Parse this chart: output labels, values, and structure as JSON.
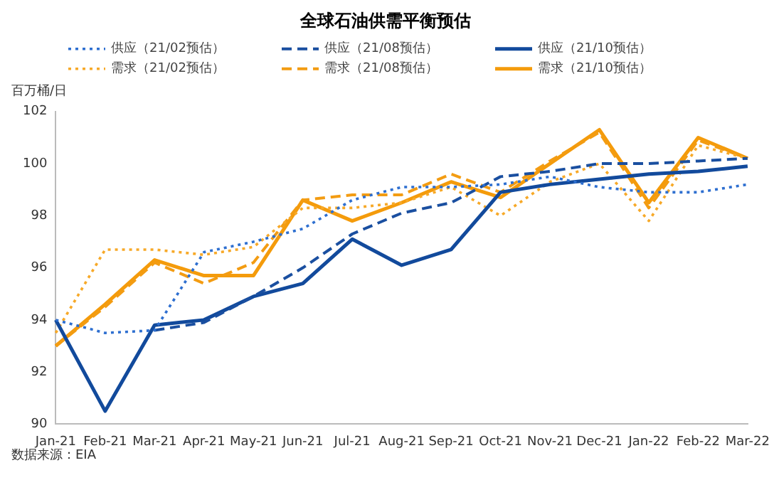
{
  "chart_data": {
    "type": "line",
    "title": "全球石油供需平衡预估",
    "ylabel": "百万桶/日",
    "categories": [
      "Jan-21",
      "Feb-21",
      "Mar-21",
      "Apr-21",
      "May-21",
      "Jun-21",
      "Jul-21",
      "Aug-21",
      "Sep-21",
      "Oct-21",
      "Nov-21",
      "Dec-21",
      "Jan-22",
      "Feb-22",
      "Mar-22"
    ],
    "series": [
      {
        "name": "供应（21/02预估）",
        "color": "#2e6fd0",
        "line_style": "dotted",
        "values": [
          94.0,
          93.5,
          93.6,
          96.6,
          97.0,
          97.5,
          98.6,
          99.1,
          99.1,
          99.2,
          99.5,
          99.1,
          98.9,
          98.9,
          99.2
        ]
      },
      {
        "name": "供应（21/08预估）",
        "color": "#1a4fa0",
        "line_style": "dashed",
        "values": [
          null,
          null,
          93.6,
          93.9,
          94.9,
          96.0,
          97.3,
          98.1,
          98.5,
          99.5,
          99.7,
          100.0,
          100.0,
          100.1,
          100.2
        ]
      },
      {
        "name": "供应（21/10预估）",
        "color": "#124a9c",
        "line_style": "solid",
        "values": [
          94.0,
          90.5,
          93.8,
          94.0,
          94.9,
          95.4,
          97.1,
          96.1,
          96.7,
          98.9,
          99.2,
          99.4,
          99.6,
          99.7,
          99.9
        ]
      },
      {
        "name": "需求（21/02预估）",
        "color": "#f7a928",
        "line_style": "dotted",
        "values": [
          93.5,
          96.7,
          96.7,
          96.5,
          96.8,
          98.3,
          98.3,
          98.5,
          99.1,
          98.0,
          99.3,
          100.0,
          97.8,
          100.7,
          100.2
        ]
      },
      {
        "name": "需求（21/08预估）",
        "color": "#f39c12",
        "line_style": "dashed",
        "values": [
          93.0,
          94.5,
          96.2,
          95.4,
          96.2,
          98.6,
          98.8,
          98.8,
          99.6,
          98.9,
          100.1,
          101.2,
          98.3,
          100.9,
          100.2
        ]
      },
      {
        "name": "需求（21/10预估）",
        "color": "#f49b0b",
        "line_style": "solid",
        "values": [
          93.0,
          94.6,
          96.3,
          95.7,
          95.7,
          98.6,
          97.8,
          98.5,
          99.3,
          98.7,
          100.0,
          101.3,
          98.5,
          101.0,
          100.2
        ]
      }
    ],
    "ylim": [
      90,
      102
    ],
    "yticks": [
      90,
      92,
      94,
      96,
      98,
      100,
      102
    ],
    "grid": false,
    "legend": "top",
    "marker": "none",
    "annotations": [
      "数据来源：EIA"
    ]
  }
}
